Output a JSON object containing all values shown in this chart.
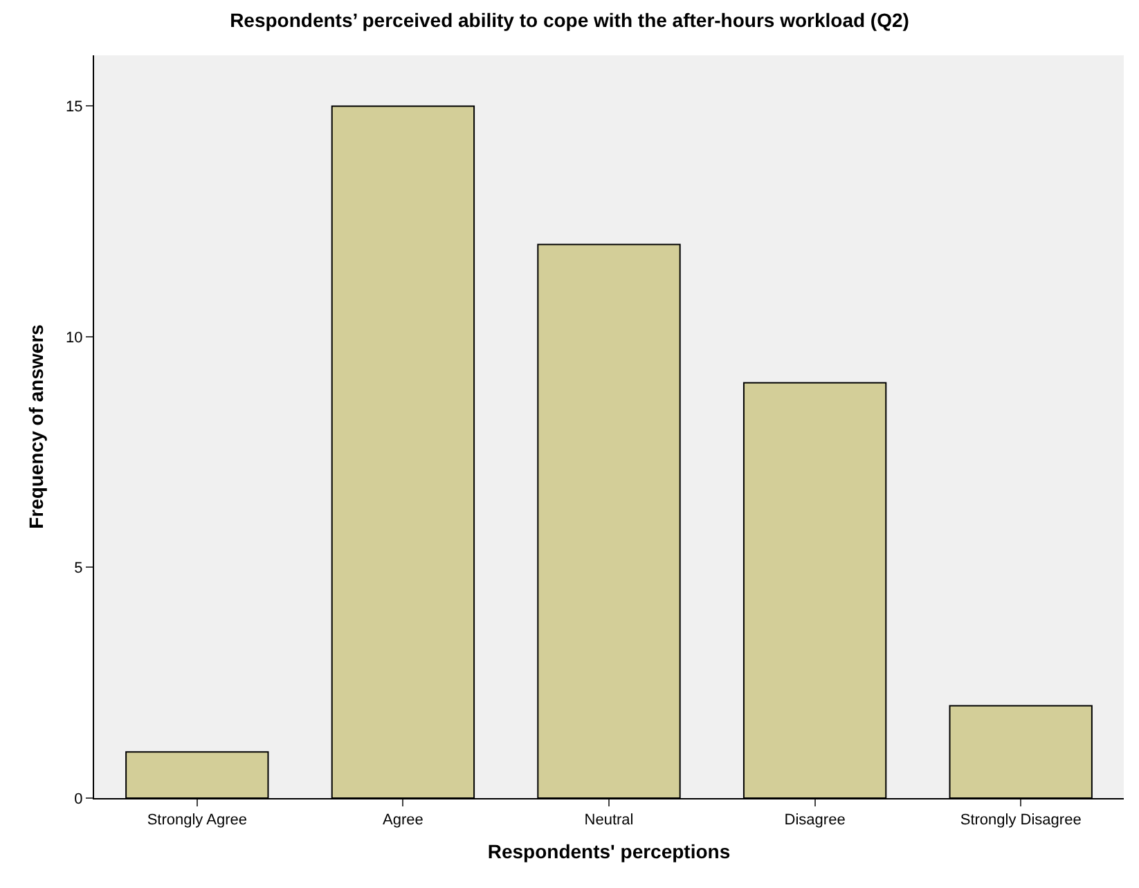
{
  "chart_data": {
    "type": "bar",
    "title": "Respondents’ perceived ability to cope with the after-hours workload (Q2)",
    "xlabel": "Respondents' perceptions",
    "ylabel": "Frequency of answers",
    "categories": [
      "Strongly Agree",
      "Agree",
      "Neutral",
      "Disagree",
      "Strongly Disagree"
    ],
    "values": [
      1,
      15,
      12,
      9,
      2
    ],
    "color": "#d3ce98",
    "ylim": [
      0,
      16.1
    ],
    "yticks": [
      0,
      5,
      10,
      15
    ],
    "grid": false,
    "legend": false
  }
}
